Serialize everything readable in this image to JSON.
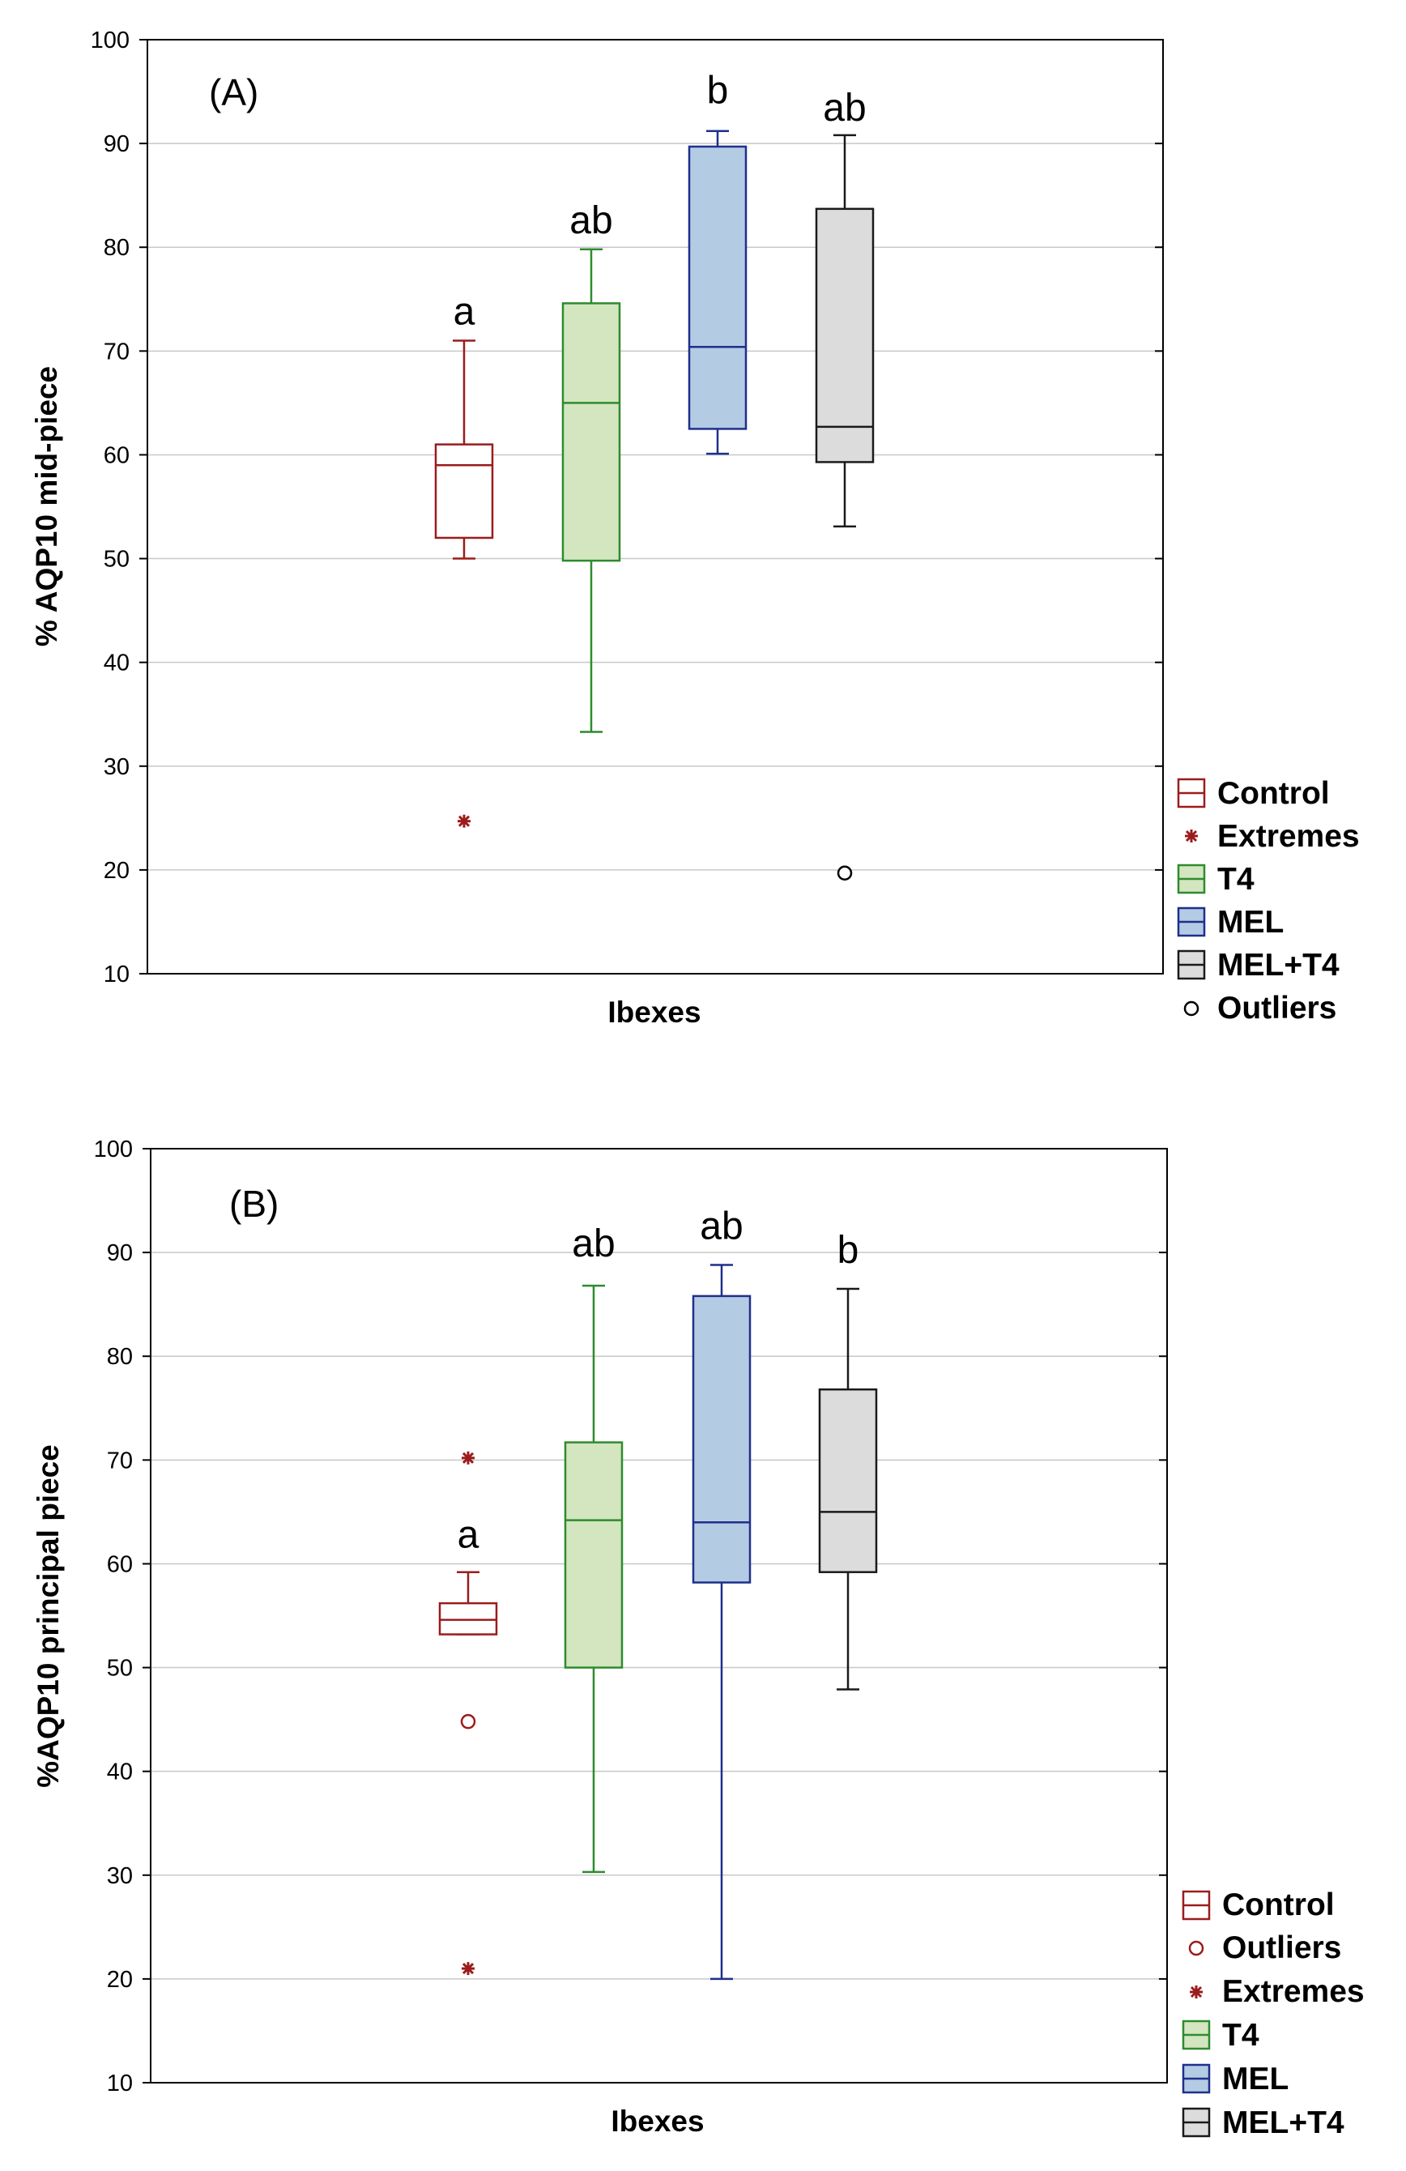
{
  "colors": {
    "control": "#9b1c1c",
    "t4_edge": "#2e8b2e",
    "t4_fill": "#d3e6bf",
    "mel_edge": "#1f2f8c",
    "mel_fill": "#b4cbe4",
    "meltt4_edge": "#1a1a1a",
    "meltt4_fill": "#dcdcdc",
    "grid": "#c8c8c8"
  },
  "chart_data": [
    {
      "type": "boxplot",
      "panel_label": "(A)",
      "xlabel": "Ibexes",
      "ylabel": "% AQP10 mid-piece",
      "ylim": [
        10,
        100
      ],
      "yticks": [
        "10",
        "20",
        "30",
        "40",
        "50",
        "60",
        "70",
        "80",
        "90",
        "100"
      ],
      "groups": [
        {
          "name": "Control",
          "key": "control",
          "min": 50,
          "q1": 52,
          "median": 59,
          "q3": 61,
          "max": 71,
          "letter": "a",
          "points": [
            {
              "kind": "extreme",
              "value": 24.7
            }
          ]
        },
        {
          "name": "T4",
          "key": "t4",
          "min": 33.3,
          "q1": 49.8,
          "median": 65,
          "q3": 74.6,
          "max": 79.8,
          "letter": "ab",
          "points": []
        },
        {
          "name": "MEL",
          "key": "mel",
          "min": 60.1,
          "q1": 62.5,
          "median": 70.4,
          "q3": 89.7,
          "max": 91.2,
          "letter": "b",
          "points": []
        },
        {
          "name": "MEL+T4",
          "key": "meltt4",
          "min": 53.1,
          "q1": 59.3,
          "median": 62.7,
          "q3": 83.7,
          "max": 90.8,
          "letter": "ab",
          "points": [
            {
              "kind": "outlier",
              "value": 19.7
            }
          ]
        }
      ],
      "legend": [
        "Control",
        "Extremes",
        "T4",
        "MEL",
        "MEL+T4",
        "Outliers"
      ]
    },
    {
      "type": "boxplot",
      "panel_label": "(B)",
      "xlabel": "Ibexes",
      "ylabel": "%AQP10 principal piece",
      "ylim": [
        10,
        100
      ],
      "yticks": [
        "10",
        "20",
        "30",
        "40",
        "50",
        "60",
        "70",
        "80",
        "90",
        "100"
      ],
      "groups": [
        {
          "name": "Control",
          "key": "control",
          "min": 53.2,
          "q1": 53.2,
          "median": 54.6,
          "q3": 56.2,
          "max": 59.2,
          "letter": "a",
          "points": [
            {
              "kind": "extreme",
              "value": 70.2
            },
            {
              "kind": "outlier",
              "value": 44.8
            },
            {
              "kind": "extreme",
              "value": 21
            }
          ]
        },
        {
          "name": "T4",
          "key": "t4",
          "min": 30.3,
          "q1": 50,
          "median": 64.2,
          "q3": 71.7,
          "max": 86.8,
          "letter": "ab",
          "points": []
        },
        {
          "name": "MEL",
          "key": "mel",
          "min": 20,
          "q1": 58.2,
          "median": 64,
          "q3": 85.8,
          "max": 88.8,
          "letter": "ab",
          "points": []
        },
        {
          "name": "MEL+T4",
          "key": "meltt4",
          "min": 47.9,
          "q1": 59.2,
          "median": 65,
          "q3": 76.8,
          "max": 86.5,
          "letter": "b",
          "points": []
        }
      ],
      "legend": [
        "Control",
        "Outliers",
        "Extremes",
        "T4",
        "MEL",
        "MEL+T4"
      ]
    }
  ]
}
